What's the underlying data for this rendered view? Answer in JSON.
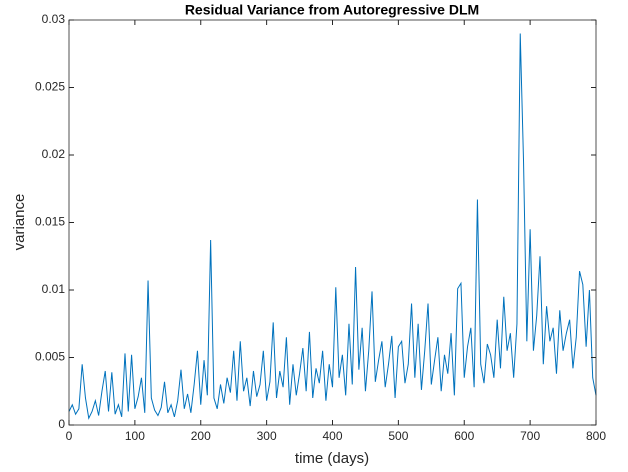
{
  "chart_data": {
    "type": "line",
    "title": "Residual Variance from Autoregressive DLM",
    "x_label": "time (days)",
    "y_label": "variance",
    "color": "#0072bd",
    "x": [
      0,
      5,
      10,
      15,
      20,
      25,
      30,
      35,
      40,
      45,
      50,
      55,
      60,
      65,
      70,
      75,
      80,
      85,
      90,
      95,
      100,
      105,
      110,
      115,
      120,
      125,
      130,
      135,
      140,
      145,
      150,
      155,
      160,
      165,
      170,
      175,
      180,
      185,
      190,
      195,
      200,
      205,
      210,
      215,
      220,
      225,
      230,
      235,
      240,
      245,
      250,
      255,
      260,
      265,
      270,
      275,
      280,
      285,
      290,
      295,
      300,
      305,
      310,
      315,
      320,
      325,
      330,
      335,
      340,
      345,
      350,
      355,
      360,
      365,
      370,
      375,
      380,
      385,
      390,
      395,
      400,
      405,
      410,
      415,
      420,
      425,
      430,
      435,
      440,
      445,
      450,
      455,
      460,
      465,
      470,
      475,
      480,
      485,
      490,
      495,
      500,
      505,
      510,
      515,
      520,
      525,
      530,
      535,
      540,
      545,
      550,
      555,
      560,
      565,
      570,
      575,
      580,
      585,
      590,
      595,
      600,
      605,
      610,
      615,
      620,
      625,
      630,
      635,
      640,
      645,
      650,
      655,
      660,
      665,
      670,
      675,
      680,
      685,
      690,
      695,
      700,
      705,
      710,
      715,
      720,
      725,
      730,
      735,
      740,
      745,
      750,
      755,
      760,
      765,
      770,
      775,
      780,
      785,
      790,
      795,
      800
    ],
    "values": [
      0.001,
      0.0015,
      0.0008,
      0.0012,
      0.0045,
      0.002,
      0.0005,
      0.001,
      0.0018,
      0.0007,
      0.0025,
      0.004,
      0.001,
      0.0039,
      0.0008,
      0.0015,
      0.0006,
      0.0053,
      0.001,
      0.0052,
      0.0012,
      0.0021,
      0.0035,
      0.0009,
      0.0107,
      0.002,
      0.0011,
      0.0007,
      0.0013,
      0.0032,
      0.0009,
      0.0015,
      0.0006,
      0.0018,
      0.0041,
      0.0012,
      0.0023,
      0.0009,
      0.003,
      0.0055,
      0.0015,
      0.0048,
      0.0022,
      0.0137,
      0.002,
      0.0012,
      0.003,
      0.0016,
      0.0035,
      0.0024,
      0.0055,
      0.0018,
      0.0062,
      0.0025,
      0.0035,
      0.0014,
      0.004,
      0.0021,
      0.003,
      0.0055,
      0.0018,
      0.0032,
      0.0076,
      0.002,
      0.004,
      0.0028,
      0.0065,
      0.0015,
      0.0045,
      0.0022,
      0.0038,
      0.0057,
      0.0025,
      0.0069,
      0.002,
      0.0042,
      0.0031,
      0.0055,
      0.0018,
      0.0045,
      0.0028,
      0.0102,
      0.0035,
      0.0052,
      0.0022,
      0.0075,
      0.003,
      0.0117,
      0.0041,
      0.0072,
      0.0025,
      0.0055,
      0.0099,
      0.0032,
      0.0048,
      0.0062,
      0.0028,
      0.0045,
      0.0066,
      0.002,
      0.0058,
      0.0062,
      0.0031,
      0.0045,
      0.009,
      0.0035,
      0.0075,
      0.0026,
      0.0055,
      0.009,
      0.003,
      0.0048,
      0.0065,
      0.0025,
      0.0052,
      0.0038,
      0.0068,
      0.0022,
      0.0101,
      0.0105,
      0.0035,
      0.0058,
      0.0072,
      0.0028,
      0.0167,
      0.0045,
      0.0031,
      0.006,
      0.0052,
      0.0035,
      0.0078,
      0.0042,
      0.0095,
      0.0055,
      0.0068,
      0.0035,
      0.0075,
      0.029,
      0.0195,
      0.0062,
      0.0145,
      0.0055,
      0.0081,
      0.0125,
      0.0045,
      0.0088,
      0.0062,
      0.0072,
      0.0038,
      0.0085,
      0.0055,
      0.0068,
      0.0078,
      0.0042,
      0.0065,
      0.0114,
      0.0104,
      0.0058,
      0.01,
      0.0035,
      0.0022
    ],
    "xlim": [
      0,
      800
    ],
    "xticks": [
      0,
      100,
      200,
      300,
      400,
      500,
      600,
      700,
      800
    ],
    "ylim": [
      0,
      0.03
    ],
    "yticks": [
      0,
      0.005,
      0.01,
      0.015,
      0.02,
      0.025,
      0.03
    ]
  }
}
